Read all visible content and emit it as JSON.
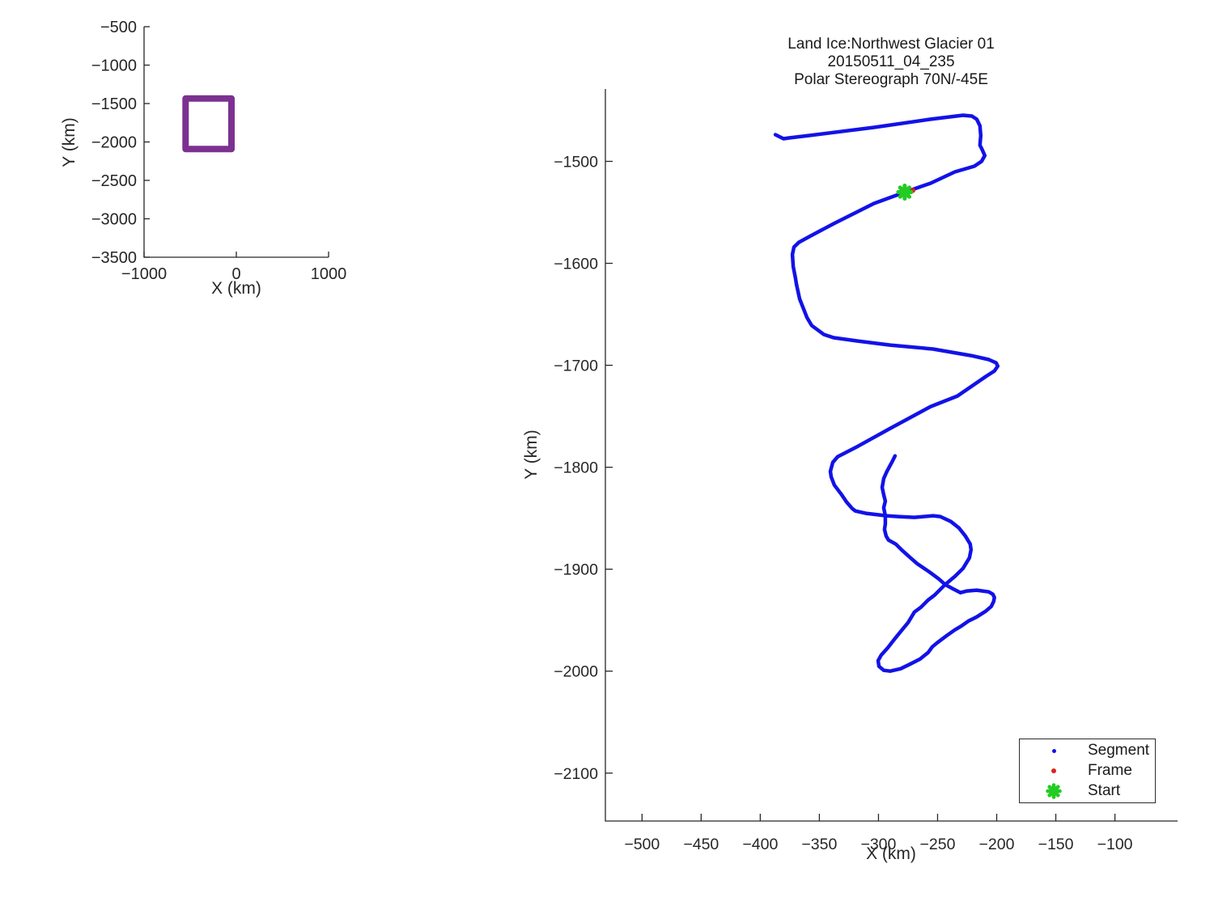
{
  "chart_data": [
    {
      "id": "overview",
      "type": "line",
      "xlabel": "X (km)",
      "ylabel": "Y (km)",
      "xlim": [
        -1000,
        1000
      ],
      "ylim": [
        -3500,
        -500
      ],
      "x_ticks": [
        -1000,
        0,
        1000
      ],
      "x_tick_labels": [
        "−1000",
        "0",
        "1000"
      ],
      "y_ticks": [
        -500,
        -1000,
        -1500,
        -2000,
        -2500,
        -3000,
        -3500
      ],
      "y_tick_labels": [
        "−500",
        "−1000",
        "−1500",
        "−2000",
        "−2500",
        "−3000",
        "−3500"
      ],
      "grid": false,
      "series": [
        {
          "name": "coverage-box",
          "kind": "outline",
          "color": "#7C3190",
          "linewidth": 8,
          "points": [
            [
              -550,
              -1435
            ],
            [
              -53,
              -1435
            ],
            [
              -53,
              -2093
            ],
            [
              -550,
              -2093
            ],
            [
              -550,
              -1435
            ]
          ]
        }
      ]
    },
    {
      "id": "flight-track",
      "type": "line",
      "title_lines": [
        "Land Ice:Northwest Glacier 01",
        "20150511_04_235",
        "Polar Stereograph 70N/-45E"
      ],
      "xlabel": "X (km)",
      "ylabel": "Y (km)",
      "xlim": [
        -531,
        -47
      ],
      "ylim": [
        -2147,
        -1429
      ],
      "x_ticks": [
        -500,
        -450,
        -400,
        -350,
        -300,
        -250,
        -200,
        -150,
        -100
      ],
      "x_tick_labels": [
        "−500",
        "−450",
        "−400",
        "−350",
        "−300",
        "−250",
        "−200",
        "−150",
        "−100"
      ],
      "y_ticks": [
        -1500,
        -1600,
        -1700,
        -1800,
        -1900,
        -2000,
        -2100
      ],
      "y_tick_labels": [
        "−1500",
        "−1600",
        "−1700",
        "−1800",
        "−1900",
        "−2000",
        "−2100"
      ],
      "grid": false,
      "legend": {
        "position": "southeast",
        "entries": [
          {
            "label": "Segment",
            "marker": "dot",
            "color": "#1212E8"
          },
          {
            "label": "Frame",
            "marker": "dot",
            "color": "#DD2222"
          },
          {
            "label": "Start",
            "marker": "asterisk",
            "color": "#22CC22"
          }
        ]
      },
      "series": [
        {
          "name": "Segment",
          "kind": "track",
          "color": "#1212E8",
          "linewidth": 4.5,
          "points": [
            [
              -387.2,
              -1473.8
            ],
            [
              -380.3,
              -1477.8
            ],
            [
              -375.6,
              -1477.0
            ],
            [
              -358.5,
              -1474.6
            ],
            [
              -303.8,
              -1466.7
            ],
            [
              -255.9,
              -1458.7
            ],
            [
              -228.5,
              -1454.8
            ],
            [
              -221.0,
              -1455.6
            ],
            [
              -216.9,
              -1458.7
            ],
            [
              -214.2,
              -1465.1
            ],
            [
              -213.5,
              -1474.6
            ],
            [
              -214.2,
              -1484.1
            ],
            [
              -212.1,
              -1488.9
            ],
            [
              -210.1,
              -1494.4
            ],
            [
              -212.8,
              -1500.0
            ],
            [
              -219.0,
              -1504.8
            ],
            [
              -235.4,
              -1510.3
            ],
            [
              -255.9,
              -1521.4
            ],
            [
              -277.8,
              -1530.2
            ],
            [
              -303.8,
              -1541.3
            ],
            [
              -337.9,
              -1561.1
            ],
            [
              -358.5,
              -1573.8
            ],
            [
              -367.4,
              -1579.4
            ],
            [
              -371.5,
              -1584.1
            ],
            [
              -372.8,
              -1591.3
            ],
            [
              -372.1,
              -1603.2
            ],
            [
              -370.1,
              -1615.1
            ],
            [
              -369.4,
              -1620.6
            ],
            [
              -366.7,
              -1634.9
            ],
            [
              -360.5,
              -1653.2
            ],
            [
              -356.4,
              -1661.1
            ],
            [
              -346.2,
              -1669.8
            ],
            [
              -337.9,
              -1673.0
            ],
            [
              -317.4,
              -1676.2
            ],
            [
              -290.1,
              -1680.2
            ],
            [
              -253.8,
              -1684.1
            ],
            [
              -221.7,
              -1690.5
            ],
            [
              -206.7,
              -1694.4
            ],
            [
              -200.5,
              -1697.6
            ],
            [
              -199.1,
              -1700.8
            ],
            [
              -201.9,
              -1705.6
            ],
            [
              -209.4,
              -1711.1
            ],
            [
              -233.3,
              -1730.2
            ],
            [
              -255.9,
              -1740.5
            ],
            [
              -290.1,
              -1761.9
            ],
            [
              -317.4,
              -1779.4
            ],
            [
              -334.5,
              -1789.7
            ],
            [
              -338.6,
              -1795.2
            ],
            [
              -340.7,
              -1804.0
            ],
            [
              -340.0,
              -1809.5
            ],
            [
              -337.3,
              -1817.5
            ],
            [
              -331.1,
              -1827.0
            ],
            [
              -327.0,
              -1834.1
            ],
            [
              -322.2,
              -1840.5
            ],
            [
              -319.5,
              -1842.9
            ],
            [
              -310.6,
              -1845.2
            ],
            [
              -299.0,
              -1846.8
            ],
            [
              -293.5,
              -1847.6
            ],
            [
              -283.2,
              -1848.4
            ],
            [
              -269.6,
              -1849.2
            ],
            [
              -253.8,
              -1847.6
            ],
            [
              -247.7,
              -1848.4
            ],
            [
              -238.8,
              -1853.2
            ],
            [
              -232.0,
              -1859.5
            ],
            [
              -226.5,
              -1867.5
            ],
            [
              -222.4,
              -1875.4
            ],
            [
              -221.7,
              -1881.0
            ],
            [
              -223.1,
              -1888.9
            ],
            [
              -228.5,
              -1899.2
            ],
            [
              -235.4,
              -1907.1
            ],
            [
              -243.6,
              -1915.1
            ],
            [
              -252.5,
              -1925.4
            ],
            [
              -257.9,
              -1930.2
            ],
            [
              -264.1,
              -1937.3
            ],
            [
              -269.6,
              -1942.1
            ],
            [
              -275.0,
              -1952.4
            ],
            [
              -281.2,
              -1961.1
            ],
            [
              -286.7,
              -1969.0
            ],
            [
              -292.1,
              -1977.0
            ],
            [
              -297.6,
              -1984.1
            ],
            [
              -300.3,
              -1989.7
            ],
            [
              -299.6,
              -1995.2
            ],
            [
              -295.6,
              -1999.2
            ],
            [
              -290.1,
              -2000.0
            ],
            [
              -281.2,
              -1997.6
            ],
            [
              -273.0,
              -1992.9
            ],
            [
              -264.8,
              -1988.1
            ],
            [
              -257.9,
              -1981.7
            ],
            [
              -254.5,
              -1976.2
            ],
            [
              -250.4,
              -1972.2
            ],
            [
              -242.2,
              -1965.1
            ],
            [
              -235.4,
              -1959.5
            ],
            [
              -230.6,
              -1956.3
            ],
            [
              -223.8,
              -1950.8
            ],
            [
              -216.9,
              -1946.8
            ],
            [
              -209.4,
              -1941.3
            ],
            [
              -204.6,
              -1936.5
            ],
            [
              -202.6,
              -1931.7
            ],
            [
              -201.9,
              -1927.8
            ],
            [
              -203.2,
              -1924.6
            ],
            [
              -206.7,
              -1922.2
            ],
            [
              -216.9,
              -1920.6
            ],
            [
              -225.1,
              -1921.4
            ],
            [
              -230.6,
              -1923.0
            ],
            [
              -237.4,
              -1919.0
            ],
            [
              -243.6,
              -1915.1
            ],
            [
              -249.1,
              -1909.5
            ],
            [
              -257.3,
              -1902.4
            ],
            [
              -267.5,
              -1894.4
            ],
            [
              -274.4,
              -1887.3
            ],
            [
              -279.8,
              -1881.7
            ],
            [
              -285.3,
              -1875.4
            ],
            [
              -291.5,
              -1871.4
            ],
            [
              -293.5,
              -1867.5
            ],
            [
              -294.9,
              -1861.1
            ],
            [
              -294.2,
              -1855.6
            ],
            [
              -294.2,
              -1847.6
            ],
            [
              -295.6,
              -1839.7
            ],
            [
              -294.2,
              -1833.3
            ],
            [
              -295.6,
              -1827.0
            ],
            [
              -296.9,
              -1819.8
            ],
            [
              -295.6,
              -1811.1
            ],
            [
              -292.8,
              -1804.0
            ],
            [
              -288.7,
              -1795.2
            ],
            [
              -286.0,
              -1788.9
            ]
          ]
        },
        {
          "name": "Frame",
          "kind": "marker",
          "marker": "dot",
          "color": "#DD2222",
          "points": [
            [
              -271.0,
              -1528.5
            ]
          ]
        },
        {
          "name": "Start",
          "kind": "marker",
          "marker": "asterisk",
          "color": "#22CC22",
          "points": [
            [
              -277.8,
              -1530.2
            ]
          ]
        }
      ]
    }
  ]
}
